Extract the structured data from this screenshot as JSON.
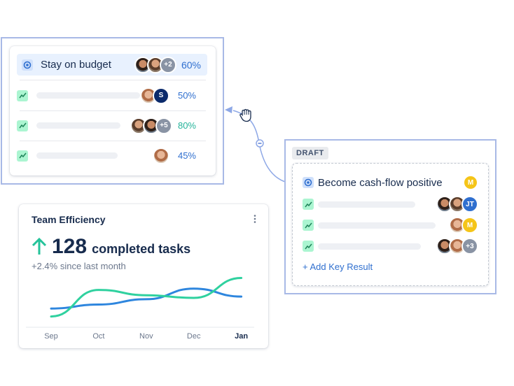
{
  "okr_card": {
    "title": "Stay on budget",
    "avatar_more": "+2",
    "percent": "60%",
    "rows": [
      {
        "percent": "50%",
        "avatar_label": "S",
        "color": "#2f6fcf"
      },
      {
        "percent": "80%",
        "avatar_more": "+5",
        "color": "#25b39a"
      },
      {
        "percent": "45%",
        "color": "#2f6fcf"
      }
    ]
  },
  "draft_card": {
    "badge": "DRAFT",
    "title": "Become cash-flow positive",
    "owner_initial": "M",
    "rows": [
      {
        "avatar_label": "JT"
      },
      {
        "avatar_label": "M"
      },
      {
        "avatar_more": "+3"
      }
    ],
    "add_link": "+ Add Key Result"
  },
  "team_card": {
    "title": "Team Efficiency",
    "menu_icon": "more-vertical-icon",
    "count": "128",
    "count_label": "completed tasks",
    "delta": "+2.4% since last month"
  },
  "chart_data": {
    "type": "line",
    "x": [
      "Sep",
      "Oct",
      "Nov",
      "Dec",
      "Jan"
    ],
    "series": [
      {
        "color": "#2e86de",
        "values": [
          1.2,
          1.5,
          1.9,
          2.7,
          2.1
        ]
      },
      {
        "color": "#2fd19f",
        "values": [
          0.6,
          2.6,
          2.2,
          2.0,
          3.5
        ]
      }
    ],
    "ylim": [
      0,
      4
    ],
    "grid": false
  },
  "colors": {
    "accent_blue": "#2f6fcf",
    "accent_green": "#25b39a",
    "frame": "#a8b9e6",
    "highlight": "#e8f1fe"
  },
  "cursor_icon": "grab-hand-icon"
}
